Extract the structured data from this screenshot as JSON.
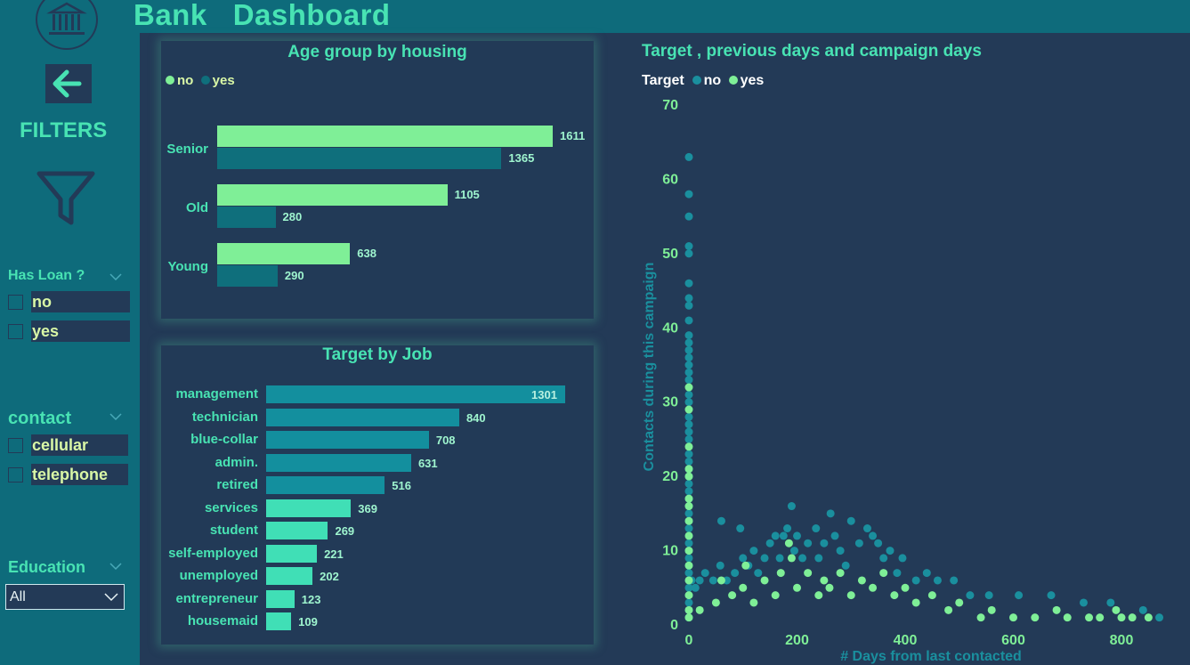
{
  "app": {
    "title": "Bank   Dashboard"
  },
  "sidebar": {
    "logo_icon": "bank-building-icon",
    "back_icon": "arrow-left-icon",
    "filters_label": "FILTERS",
    "funnel_icon": "funnel-icon",
    "has_loan": {
      "title": "Has Loan ?",
      "options": [
        "no",
        "yes"
      ]
    },
    "contact": {
      "title": "contact",
      "options": [
        "cellular",
        "telephone"
      ]
    },
    "education": {
      "title": "Education",
      "selected": "All"
    }
  },
  "colors": {
    "no": "#7fef97",
    "yes": "#0f6f7c",
    "accent": "#48e3b3",
    "bg": "#233a57",
    "sidebar": "#0e6b7b"
  },
  "chart_data": [
    {
      "type": "bar",
      "title": "Age group by housing",
      "categories": [
        "Senior",
        "Old",
        "Young"
      ],
      "series": [
        {
          "name": "no",
          "values": [
            1611,
            1105,
            638
          ]
        },
        {
          "name": "yes",
          "values": [
            1365,
            280,
            290
          ]
        }
      ]
    },
    {
      "type": "bar",
      "title": "Target by Job",
      "categories": [
        "management",
        "technician",
        "blue-collar",
        "admin.",
        "retired",
        "services",
        "student",
        "self-employed",
        "unemployed",
        "entrepreneur",
        "housemaid"
      ],
      "values": [
        1301,
        840,
        708,
        631,
        516,
        369,
        269,
        221,
        202,
        123,
        109
      ]
    },
    {
      "type": "scatter",
      "title": "Target , previous days and campaign days",
      "legend_title": "Target",
      "xlabel": "# Days from last contacted",
      "ylabel": "Contacts during this campaign",
      "xlim": [
        0,
        880
      ],
      "ylim": [
        0,
        70
      ],
      "xticks": [
        "0",
        "200",
        "400",
        "600",
        "800"
      ],
      "yticks": [
        "0",
        "10",
        "20",
        "30",
        "40",
        "50",
        "60",
        "70"
      ],
      "series": [
        {
          "name": "no",
          "points": [
            [
              0,
              63
            ],
            [
              0,
              58
            ],
            [
              0,
              55
            ],
            [
              0,
              51
            ],
            [
              0,
              50
            ],
            [
              0,
              46
            ],
            [
              0,
              44
            ],
            [
              0,
              43
            ],
            [
              0,
              41
            ],
            [
              0,
              39
            ],
            [
              0,
              38
            ],
            [
              0,
              37
            ],
            [
              0,
              36
            ],
            [
              0,
              35
            ],
            [
              0,
              34
            ],
            [
              0,
              33
            ],
            [
              0,
              31
            ],
            [
              0,
              30
            ],
            [
              0,
              28
            ],
            [
              0,
              27
            ],
            [
              0,
              26
            ],
            [
              0,
              25
            ],
            [
              0,
              23
            ],
            [
              0,
              22
            ],
            [
              0,
              21
            ],
            [
              0,
              20
            ],
            [
              0,
              19
            ],
            [
              0,
              18
            ],
            [
              0,
              17
            ],
            [
              0,
              16
            ],
            [
              0,
              15
            ],
            [
              0,
              14
            ],
            [
              0,
              13
            ],
            [
              0,
              12
            ],
            [
              0,
              11
            ],
            [
              0,
              10
            ],
            [
              0,
              9
            ],
            [
              0,
              8
            ],
            [
              0,
              7
            ],
            [
              0,
              6
            ],
            [
              0,
              5
            ],
            [
              0,
              4
            ],
            [
              0,
              3
            ],
            [
              0,
              2
            ],
            [
              0,
              1
            ],
            [
              5,
              6
            ],
            [
              12,
              5
            ],
            [
              20,
              6
            ],
            [
              30,
              7
            ],
            [
              45,
              6
            ],
            [
              58,
              8
            ],
            [
              60,
              14
            ],
            [
              70,
              6
            ],
            [
              85,
              7
            ],
            [
              95,
              13
            ],
            [
              100,
              9
            ],
            [
              110,
              8
            ],
            [
              120,
              10
            ],
            [
              128,
              7
            ],
            [
              140,
              9
            ],
            [
              150,
              11
            ],
            [
              160,
              12
            ],
            [
              168,
              9
            ],
            [
              175,
              12
            ],
            [
              182,
              13
            ],
            [
              190,
              16
            ],
            [
              195,
              10
            ],
            [
              200,
              12
            ],
            [
              210,
              9
            ],
            [
              220,
              11
            ],
            [
              235,
              13
            ],
            [
              240,
              9
            ],
            [
              250,
              11
            ],
            [
              262,
              15
            ],
            [
              270,
              12
            ],
            [
              280,
              10
            ],
            [
              290,
              8
            ],
            [
              300,
              14
            ],
            [
              315,
              11
            ],
            [
              330,
              13
            ],
            [
              340,
              12
            ],
            [
              350,
              11
            ],
            [
              360,
              9
            ],
            [
              372,
              10
            ],
            [
              385,
              7
            ],
            [
              395,
              9
            ],
            [
              420,
              6
            ],
            [
              440,
              7
            ],
            [
              460,
              6
            ],
            [
              490,
              6
            ],
            [
              520,
              4
            ],
            [
              555,
              4
            ],
            [
              610,
              4
            ],
            [
              670,
              4
            ],
            [
              730,
              3
            ],
            [
              780,
              3
            ],
            [
              840,
              2
            ],
            [
              870,
              1
            ]
          ]
        },
        {
          "name": "yes",
          "points": [
            [
              0,
              32
            ],
            [
              0,
              29
            ],
            [
              0,
              24
            ],
            [
              0,
              21
            ],
            [
              0,
              20
            ],
            [
              0,
              17
            ],
            [
              0,
              16
            ],
            [
              0,
              14
            ],
            [
              0,
              12
            ],
            [
              0,
              10
            ],
            [
              0,
              8
            ],
            [
              0,
              6
            ],
            [
              0,
              4
            ],
            [
              0,
              2
            ],
            [
              0,
              1
            ],
            [
              20,
              2
            ],
            [
              50,
              3
            ],
            [
              60,
              6
            ],
            [
              80,
              4
            ],
            [
              100,
              5
            ],
            [
              105,
              8
            ],
            [
              120,
              3
            ],
            [
              140,
              6
            ],
            [
              160,
              4
            ],
            [
              170,
              7
            ],
            [
              185,
              11
            ],
            [
              190,
              9
            ],
            [
              200,
              5
            ],
            [
              220,
              7
            ],
            [
              240,
              4
            ],
            [
              250,
              6
            ],
            [
              260,
              5
            ],
            [
              280,
              7
            ],
            [
              300,
              4
            ],
            [
              320,
              6
            ],
            [
              340,
              5
            ],
            [
              360,
              7
            ],
            [
              380,
              4
            ],
            [
              400,
              5
            ],
            [
              420,
              3
            ],
            [
              450,
              4
            ],
            [
              480,
              2
            ],
            [
              500,
              3
            ],
            [
              540,
              1
            ],
            [
              560,
              2
            ],
            [
              600,
              1
            ],
            [
              640,
              1
            ],
            [
              680,
              2
            ],
            [
              700,
              1
            ],
            [
              740,
              1
            ],
            [
              760,
              1
            ],
            [
              790,
              2
            ],
            [
              800,
              1
            ],
            [
              820,
              1
            ],
            [
              850,
              1
            ]
          ]
        }
      ]
    }
  ]
}
